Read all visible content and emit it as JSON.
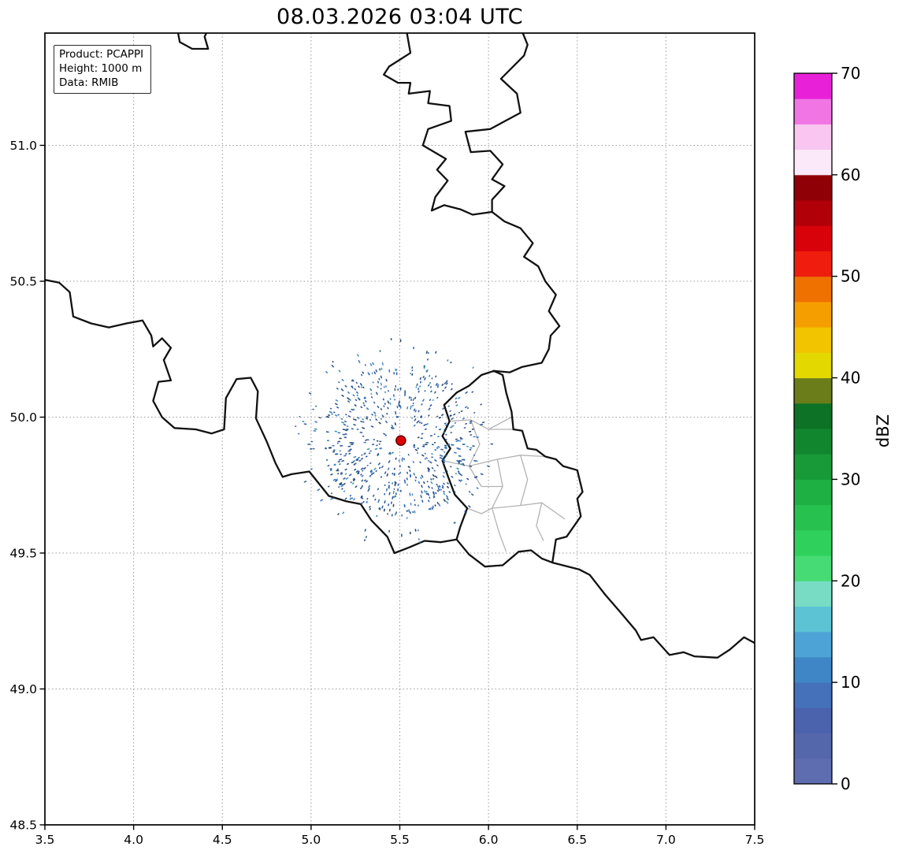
{
  "chart_data": {
    "type": "map",
    "title": "08.03.2026 03:04 UTC",
    "annotation_box": [
      "Product: PCAPPI",
      "Height: 1000 m",
      "Data: RMIB"
    ],
    "x_axis": {
      "range": [
        3.5,
        7.5
      ],
      "ticks": [
        3.5,
        4.0,
        4.5,
        5.0,
        5.5,
        6.0,
        6.5,
        7.0,
        7.5
      ]
    },
    "y_axis": {
      "range": [
        48.5,
        51.413
      ],
      "ticks": [
        48.5,
        49.0,
        49.5,
        50.0,
        50.5,
        51.0
      ]
    },
    "grid": {
      "on": true,
      "style": "dotted",
      "color": "#9b9b9b",
      "x_lines": [
        4.0,
        4.5,
        5.0,
        5.5,
        6.0,
        6.5,
        7.0
      ],
      "y_lines": [
        49.0,
        49.5,
        50.0,
        50.5,
        51.0
      ]
    },
    "radar_site": {
      "lon": 5.506,
      "lat": 49.914,
      "color": "#e00000",
      "edge_color": "#6e0000"
    },
    "echo_field": {
      "description": "sparse low-reflectivity clutter speckles around radar site",
      "center_lon": 5.506,
      "center_lat": 49.914,
      "radius_px": 98,
      "outer_radius_px": 135,
      "count": 650,
      "outer_count": 85,
      "seed": 1337,
      "colors": [
        "#1f4c8f",
        "#2e6cb5",
        "#16395f",
        "#3e86c0",
        "#2e8aa0"
      ]
    },
    "colorbar": {
      "label": "dBZ",
      "min": 0,
      "max": 70,
      "ticks": [
        0,
        10,
        20,
        30,
        40,
        50,
        60,
        70
      ],
      "segments_bottom_to_top": [
        "#5e6cb0",
        "#5567ab",
        "#4b63ad",
        "#4570ba",
        "#3f86c6",
        "#4da3d6",
        "#5cc3d5",
        "#78dcc4",
        "#46db74",
        "#2fd15c",
        "#27c150",
        "#1fb044",
        "#189a38",
        "#12862e",
        "#0d7225",
        "#6b7d1a",
        "#e3d800",
        "#f2c400",
        "#f59e00",
        "#ef7100",
        "#ee1d0d",
        "#d8020b",
        "#b20009",
        "#8e0006",
        "#fbe9f9",
        "#f8c6f0",
        "#f175e2",
        "#e821d8"
      ]
    },
    "borders": {
      "color": "#111111",
      "width": 2.3,
      "region_color": "#b3b3b3",
      "region_width": 1.3,
      "country_lines": [
        [
          [
            4.24,
            51.45
          ],
          [
            4.26,
            51.38
          ],
          [
            4.33,
            51.355
          ],
          [
            4.42,
            51.355
          ],
          [
            4.4,
            51.4
          ],
          [
            4.44,
            51.45
          ]
        ],
        [
          [
            5.53,
            51.45
          ],
          [
            5.56,
            51.34
          ],
          [
            5.44,
            51.29
          ],
          [
            5.41,
            51.26
          ],
          [
            5.49,
            51.23
          ],
          [
            5.56,
            51.23
          ],
          [
            5.55,
            51.19
          ],
          [
            5.67,
            51.2
          ],
          [
            5.66,
            51.155
          ],
          [
            5.78,
            51.145
          ],
          [
            5.79,
            51.09
          ],
          [
            5.66,
            51.06
          ],
          [
            5.63,
            51.0
          ],
          [
            5.76,
            50.95
          ],
          [
            5.71,
            50.91
          ],
          [
            5.77,
            50.87
          ],
          [
            5.7,
            50.81
          ],
          [
            5.68,
            50.76
          ],
          [
            5.75,
            50.78
          ],
          [
            5.84,
            50.765
          ],
          [
            5.91,
            50.745
          ],
          [
            6.02,
            50.755
          ]
        ],
        [
          [
            6.17,
            51.45
          ],
          [
            6.22,
            51.37
          ],
          [
            6.2,
            51.33
          ],
          [
            6.07,
            51.245
          ],
          [
            6.16,
            51.19
          ],
          [
            6.18,
            51.12
          ],
          [
            6.01,
            51.06
          ],
          [
            5.87,
            51.05
          ],
          [
            5.9,
            50.975
          ],
          [
            6.01,
            50.98
          ],
          [
            6.08,
            50.93
          ],
          [
            6.02,
            50.875
          ],
          [
            6.09,
            50.85
          ],
          [
            6.02,
            50.8
          ],
          [
            6.02,
            50.755
          ]
        ],
        [
          [
            6.02,
            50.755
          ],
          [
            6.09,
            50.72
          ],
          [
            6.18,
            50.695
          ],
          [
            6.25,
            50.64
          ],
          [
            6.2,
            50.59
          ],
          [
            6.28,
            50.555
          ],
          [
            6.32,
            50.5
          ],
          [
            6.38,
            50.45
          ],
          [
            6.34,
            50.39
          ],
          [
            6.4,
            50.335
          ],
          [
            6.35,
            50.3
          ],
          [
            6.34,
            50.25
          ],
          [
            6.3,
            50.2
          ],
          [
            6.19,
            50.185
          ],
          [
            6.12,
            50.165
          ],
          [
            6.03,
            50.17
          ]
        ],
        [
          [
            6.03,
            50.17
          ],
          [
            6.08,
            50.155
          ],
          [
            6.1,
            50.09
          ],
          [
            6.13,
            50.02
          ],
          [
            6.14,
            49.955
          ],
          [
            6.19,
            49.95
          ],
          [
            6.22,
            49.885
          ],
          [
            6.27,
            49.88
          ],
          [
            6.32,
            49.855
          ],
          [
            6.38,
            49.845
          ],
          [
            6.42,
            49.82
          ],
          [
            6.5,
            49.805
          ],
          [
            6.53,
            49.725
          ],
          [
            6.5,
            49.7
          ],
          [
            6.52,
            49.635
          ],
          [
            6.44,
            49.56
          ],
          [
            6.38,
            49.55
          ],
          [
            6.36,
            49.465
          ],
          [
            6.3,
            49.48
          ],
          [
            6.24,
            49.51
          ],
          [
            6.17,
            49.505
          ],
          [
            6.08,
            49.455
          ],
          [
            5.98,
            49.45
          ],
          [
            5.89,
            49.495
          ],
          [
            5.82,
            49.55
          ],
          [
            5.84,
            49.595
          ],
          [
            5.88,
            49.665
          ],
          [
            5.81,
            49.715
          ],
          [
            5.77,
            49.785
          ],
          [
            5.74,
            49.84
          ],
          [
            5.785,
            49.885
          ],
          [
            5.74,
            49.93
          ],
          [
            5.78,
            49.985
          ],
          [
            5.75,
            50.045
          ],
          [
            5.82,
            50.09
          ],
          [
            5.89,
            50.115
          ],
          [
            5.96,
            50.155
          ],
          [
            6.03,
            50.17
          ]
        ],
        [
          [
            3.46,
            50.51
          ],
          [
            3.58,
            50.495
          ],
          [
            3.64,
            50.46
          ],
          [
            3.66,
            50.37
          ],
          [
            3.76,
            50.345
          ],
          [
            3.86,
            50.33
          ],
          [
            3.96,
            50.345
          ],
          [
            4.05,
            50.356
          ],
          [
            4.1,
            50.3
          ],
          [
            4.11,
            50.26
          ],
          [
            4.16,
            50.29
          ],
          [
            4.21,
            50.255
          ],
          [
            4.17,
            50.21
          ],
          [
            4.21,
            50.135
          ],
          [
            4.14,
            50.13
          ],
          [
            4.11,
            50.06
          ],
          [
            4.16,
            50.0
          ],
          [
            4.23,
            49.96
          ],
          [
            4.35,
            49.955
          ],
          [
            4.44,
            49.94
          ],
          [
            4.51,
            49.955
          ],
          [
            4.52,
            50.07
          ],
          [
            4.58,
            50.14
          ],
          [
            4.66,
            50.145
          ],
          [
            4.7,
            50.095
          ],
          [
            4.69,
            49.995
          ],
          [
            4.75,
            49.91
          ],
          [
            4.8,
            49.83
          ],
          [
            4.84,
            49.78
          ],
          [
            4.89,
            49.79
          ],
          [
            4.99,
            49.8
          ],
          [
            5.1,
            49.71
          ],
          [
            5.2,
            49.69
          ],
          [
            5.28,
            49.68
          ],
          [
            5.34,
            49.62
          ],
          [
            5.43,
            49.56
          ],
          [
            5.47,
            49.5
          ],
          [
            5.55,
            49.52
          ],
          [
            5.64,
            49.545
          ],
          [
            5.73,
            49.54
          ],
          [
            5.82,
            49.55
          ]
        ],
        [
          [
            6.36,
            49.465
          ],
          [
            6.51,
            49.44
          ],
          [
            6.57,
            49.42
          ],
          [
            6.66,
            49.345
          ],
          [
            6.74,
            49.285
          ],
          [
            6.83,
            49.215
          ],
          [
            6.86,
            49.18
          ],
          [
            6.93,
            49.19
          ],
          [
            7.02,
            49.125
          ],
          [
            7.1,
            49.135
          ],
          [
            7.16,
            49.12
          ],
          [
            7.29,
            49.115
          ],
          [
            7.36,
            49.145
          ],
          [
            7.44,
            49.19
          ],
          [
            7.54,
            49.155
          ]
        ]
      ],
      "region_lines": [
        [
          [
            5.78,
            49.985
          ],
          [
            5.9,
            49.99
          ],
          [
            6.0,
            49.955
          ],
          [
            6.13,
            50.0
          ]
        ],
        [
          [
            5.9,
            49.99
          ],
          [
            5.95,
            49.9
          ],
          [
            5.89,
            49.82
          ],
          [
            5.96,
            49.745
          ]
        ],
        [
          [
            5.74,
            49.84
          ],
          [
            5.89,
            49.82
          ],
          [
            6.05,
            49.845
          ],
          [
            6.18,
            49.86
          ],
          [
            6.32,
            49.855
          ]
        ],
        [
          [
            6.05,
            49.845
          ],
          [
            6.08,
            49.745
          ],
          [
            6.02,
            49.665
          ],
          [
            6.06,
            49.575
          ]
        ],
        [
          [
            5.88,
            49.665
          ],
          [
            5.96,
            49.645
          ],
          [
            6.02,
            49.665
          ],
          [
            6.18,
            49.675
          ],
          [
            6.3,
            49.685
          ],
          [
            6.43,
            49.625
          ]
        ],
        [
          [
            6.18,
            49.86
          ],
          [
            6.22,
            49.77
          ],
          [
            6.18,
            49.675
          ]
        ],
        [
          [
            6.3,
            49.685
          ],
          [
            6.27,
            49.6
          ],
          [
            6.31,
            49.545
          ]
        ],
        [
          [
            6.06,
            49.575
          ],
          [
            6.1,
            49.505
          ]
        ],
        [
          [
            5.96,
            49.745
          ],
          [
            6.08,
            49.745
          ]
        ],
        [
          [
            6.14,
            49.955
          ],
          [
            6.0,
            49.955
          ]
        ]
      ]
    }
  }
}
